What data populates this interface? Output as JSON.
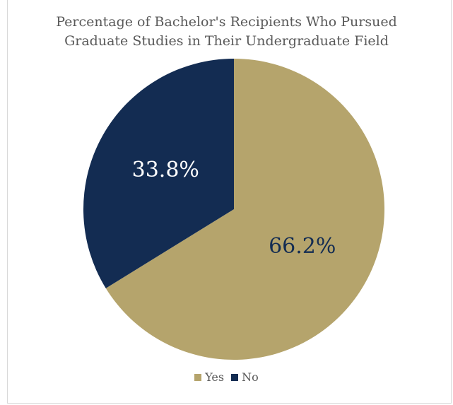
{
  "chart_data": {
    "type": "pie",
    "title_lines": [
      "Percentage of Bachelor's Recipients Who Pursued",
      "Graduate Studies in Their Undergraduate Field"
    ],
    "categories": [
      "Yes",
      "No"
    ],
    "values": [
      66.2,
      33.8
    ],
    "data_labels": [
      "66.2%",
      "33.8%"
    ],
    "colors": [
      "#b5a46c",
      "#132c52"
    ],
    "label_colors": [
      "#132c52",
      "#ffffff"
    ],
    "legend_position": "bottom",
    "start_angle_deg": 0,
    "direction": "clockwise"
  }
}
